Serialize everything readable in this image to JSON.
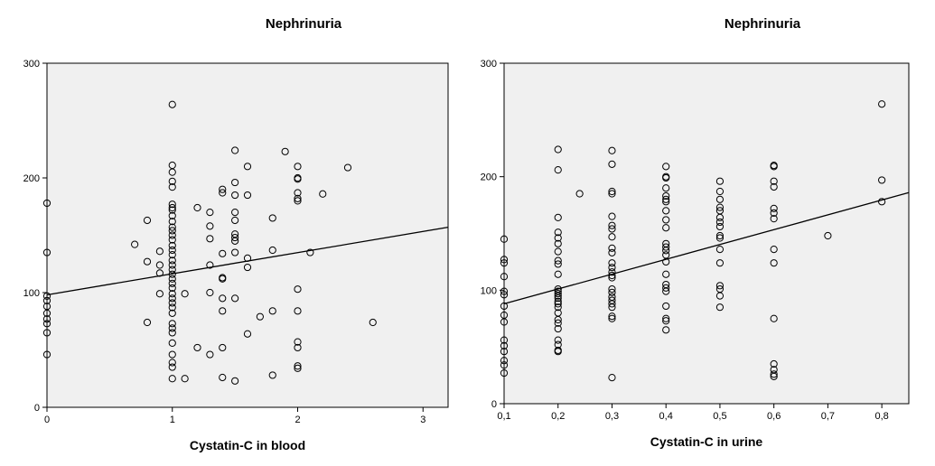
{
  "chart_data": [
    {
      "type": "scatter",
      "title": "Nephrinuria",
      "xlabel": "Cystatin-C in blood",
      "ylabel": "",
      "xlim": [
        0,
        3.2
      ],
      "ylim": [
        0,
        300
      ],
      "xticks": [
        0,
        1,
        2,
        3
      ],
      "xtick_labels": [
        "0",
        "1",
        "2",
        "3"
      ],
      "yticks": [
        0,
        100,
        200,
        300
      ],
      "ytick_labels": [
        "0",
        "100",
        "200",
        "300"
      ],
      "fit_line": {
        "x": [
          0,
          3.2
        ],
        "y": [
          98,
          157
        ]
      },
      "points": [
        [
          0,
          178
        ],
        [
          0,
          135
        ],
        [
          0,
          97
        ],
        [
          0,
          93
        ],
        [
          0,
          88
        ],
        [
          0,
          82
        ],
        [
          0,
          77
        ],
        [
          0,
          73
        ],
        [
          0,
          65
        ],
        [
          0,
          46
        ],
        [
          0.7,
          142
        ],
        [
          0.8,
          163
        ],
        [
          0.8,
          127
        ],
        [
          0.8,
          74
        ],
        [
          0.9,
          136
        ],
        [
          0.9,
          124
        ],
        [
          0.9,
          117
        ],
        [
          0.9,
          99
        ],
        [
          1,
          264
        ],
        [
          1,
          211
        ],
        [
          1,
          205
        ],
        [
          1,
          197
        ],
        [
          1,
          192
        ],
        [
          1,
          177
        ],
        [
          1,
          174
        ],
        [
          1,
          172
        ],
        [
          1,
          167
        ],
        [
          1,
          162
        ],
        [
          1,
          157
        ],
        [
          1,
          154
        ],
        [
          1,
          150
        ],
        [
          1,
          146
        ],
        [
          1,
          141
        ],
        [
          1,
          137
        ],
        [
          1,
          133
        ],
        [
          1,
          128
        ],
        [
          1,
          124
        ],
        [
          1,
          120
        ],
        [
          1,
          116
        ],
        [
          1,
          112
        ],
        [
          1,
          108
        ],
        [
          1,
          104
        ],
        [
          1,
          99
        ],
        [
          1,
          95
        ],
        [
          1,
          91
        ],
        [
          1,
          87
        ],
        [
          1,
          82
        ],
        [
          1,
          73
        ],
        [
          1,
          69
        ],
        [
          1,
          65
        ],
        [
          1,
          56
        ],
        [
          1,
          46
        ],
        [
          1,
          39
        ],
        [
          1,
          35
        ],
        [
          1,
          25
        ],
        [
          1.1,
          99
        ],
        [
          1.1,
          25
        ],
        [
          1.2,
          174
        ],
        [
          1.2,
          52
        ],
        [
          1.3,
          170
        ],
        [
          1.3,
          158
        ],
        [
          1.3,
          147
        ],
        [
          1.3,
          124
        ],
        [
          1.3,
          100
        ],
        [
          1.3,
          46
        ],
        [
          1.4,
          190
        ],
        [
          1.4,
          187
        ],
        [
          1.4,
          134
        ],
        [
          1.4,
          113
        ],
        [
          1.4,
          112
        ],
        [
          1.4,
          95
        ],
        [
          1.4,
          84
        ],
        [
          1.4,
          52
        ],
        [
          1.4,
          26
        ],
        [
          1.5,
          224
        ],
        [
          1.5,
          196
        ],
        [
          1.5,
          185
        ],
        [
          1.5,
          170
        ],
        [
          1.5,
          163
        ],
        [
          1.5,
          151
        ],
        [
          1.5,
          148
        ],
        [
          1.5,
          145
        ],
        [
          1.5,
          135
        ],
        [
          1.5,
          95
        ],
        [
          1.5,
          23
        ],
        [
          1.6,
          210
        ],
        [
          1.6,
          185
        ],
        [
          1.6,
          130
        ],
        [
          1.6,
          122
        ],
        [
          1.6,
          64
        ],
        [
          1.7,
          79
        ],
        [
          1.8,
          165
        ],
        [
          1.8,
          137
        ],
        [
          1.8,
          84
        ],
        [
          1.8,
          28
        ],
        [
          1.9,
          223
        ],
        [
          2,
          210
        ],
        [
          2,
          200
        ],
        [
          2,
          199
        ],
        [
          2,
          187
        ],
        [
          2,
          182
        ],
        [
          2,
          180
        ],
        [
          2,
          103
        ],
        [
          2,
          84
        ],
        [
          2,
          57
        ],
        [
          2,
          52
        ],
        [
          2,
          36
        ],
        [
          2,
          34
        ],
        [
          2.1,
          135
        ],
        [
          2.2,
          186
        ],
        [
          2.4,
          209
        ],
        [
          2.6,
          74
        ]
      ]
    },
    {
      "type": "scatter",
      "title": "Nephrinuria",
      "xlabel": "Cystatin-C in urine",
      "ylabel": "",
      "xlim": [
        0.1,
        0.85
      ],
      "ylim": [
        0,
        300
      ],
      "xticks": [
        0.1,
        0.2,
        0.3,
        0.4,
        0.5,
        0.6,
        0.7,
        0.8
      ],
      "xtick_labels": [
        "0,1",
        "0,2",
        "0,3",
        "0,4",
        "0,5",
        "0,6",
        "0,7",
        "0,8"
      ],
      "yticks": [
        0,
        100,
        200,
        300
      ],
      "ytick_labels": [
        "0",
        "100",
        "200",
        "300"
      ],
      "fit_line": {
        "x": [
          0.1,
          0.85
        ],
        "y": [
          88,
          186
        ]
      },
      "points": [
        [
          0.1,
          145
        ],
        [
          0.1,
          127
        ],
        [
          0.1,
          124
        ],
        [
          0.1,
          112
        ],
        [
          0.1,
          99
        ],
        [
          0.1,
          96
        ],
        [
          0.1,
          86
        ],
        [
          0.1,
          78
        ],
        [
          0.1,
          72
        ],
        [
          0.1,
          56
        ],
        [
          0.1,
          51
        ],
        [
          0.1,
          46
        ],
        [
          0.1,
          38
        ],
        [
          0.1,
          34
        ],
        [
          0.1,
          27
        ],
        [
          0.2,
          224
        ],
        [
          0.2,
          206
        ],
        [
          0.2,
          164
        ],
        [
          0.2,
          151
        ],
        [
          0.2,
          146
        ],
        [
          0.2,
          141
        ],
        [
          0.2,
          134
        ],
        [
          0.2,
          126
        ],
        [
          0.2,
          123
        ],
        [
          0.2,
          114
        ],
        [
          0.2,
          101
        ],
        [
          0.2,
          99
        ],
        [
          0.2,
          97
        ],
        [
          0.2,
          95
        ],
        [
          0.2,
          93
        ],
        [
          0.2,
          90
        ],
        [
          0.2,
          88
        ],
        [
          0.2,
          85
        ],
        [
          0.2,
          80
        ],
        [
          0.2,
          74
        ],
        [
          0.2,
          71
        ],
        [
          0.2,
          66
        ],
        [
          0.2,
          56
        ],
        [
          0.2,
          52
        ],
        [
          0.2,
          47
        ],
        [
          0.2,
          46
        ],
        [
          0.24,
          185
        ],
        [
          0.3,
          223
        ],
        [
          0.3,
          211
        ],
        [
          0.3,
          187
        ],
        [
          0.3,
          185
        ],
        [
          0.3,
          165
        ],
        [
          0.3,
          157
        ],
        [
          0.3,
          154
        ],
        [
          0.3,
          147
        ],
        [
          0.3,
          137
        ],
        [
          0.3,
          133
        ],
        [
          0.3,
          124
        ],
        [
          0.3,
          120
        ],
        [
          0.3,
          116
        ],
        [
          0.3,
          113
        ],
        [
          0.3,
          111
        ],
        [
          0.3,
          101
        ],
        [
          0.3,
          98
        ],
        [
          0.3,
          94
        ],
        [
          0.3,
          91
        ],
        [
          0.3,
          88
        ],
        [
          0.3,
          85
        ],
        [
          0.3,
          77
        ],
        [
          0.3,
          75
        ],
        [
          0.3,
          23
        ],
        [
          0.4,
          209
        ],
        [
          0.4,
          200
        ],
        [
          0.4,
          199
        ],
        [
          0.4,
          190
        ],
        [
          0.4,
          183
        ],
        [
          0.4,
          180
        ],
        [
          0.4,
          178
        ],
        [
          0.4,
          170
        ],
        [
          0.4,
          162
        ],
        [
          0.4,
          155
        ],
        [
          0.4,
          141
        ],
        [
          0.4,
          138
        ],
        [
          0.4,
          135
        ],
        [
          0.4,
          131
        ],
        [
          0.4,
          125
        ],
        [
          0.4,
          114
        ],
        [
          0.4,
          105
        ],
        [
          0.4,
          102
        ],
        [
          0.4,
          99
        ],
        [
          0.4,
          86
        ],
        [
          0.4,
          75
        ],
        [
          0.4,
          73
        ],
        [
          0.4,
          65
        ],
        [
          0.5,
          196
        ],
        [
          0.5,
          187
        ],
        [
          0.5,
          180
        ],
        [
          0.5,
          173
        ],
        [
          0.5,
          170
        ],
        [
          0.5,
          164
        ],
        [
          0.5,
          160
        ],
        [
          0.5,
          156
        ],
        [
          0.5,
          148
        ],
        [
          0.5,
          146
        ],
        [
          0.5,
          136
        ],
        [
          0.5,
          124
        ],
        [
          0.5,
          104
        ],
        [
          0.5,
          101
        ],
        [
          0.5,
          95
        ],
        [
          0.5,
          85
        ],
        [
          0.6,
          210
        ],
        [
          0.6,
          209
        ],
        [
          0.6,
          196
        ],
        [
          0.6,
          191
        ],
        [
          0.6,
          172
        ],
        [
          0.6,
          168
        ],
        [
          0.6,
          163
        ],
        [
          0.6,
          136
        ],
        [
          0.6,
          124
        ],
        [
          0.6,
          75
        ],
        [
          0.6,
          35
        ],
        [
          0.6,
          30
        ],
        [
          0.6,
          26
        ],
        [
          0.6,
          24
        ],
        [
          0.7,
          148
        ],
        [
          0.8,
          264
        ],
        [
          0.8,
          197
        ],
        [
          0.8,
          178
        ]
      ]
    }
  ]
}
